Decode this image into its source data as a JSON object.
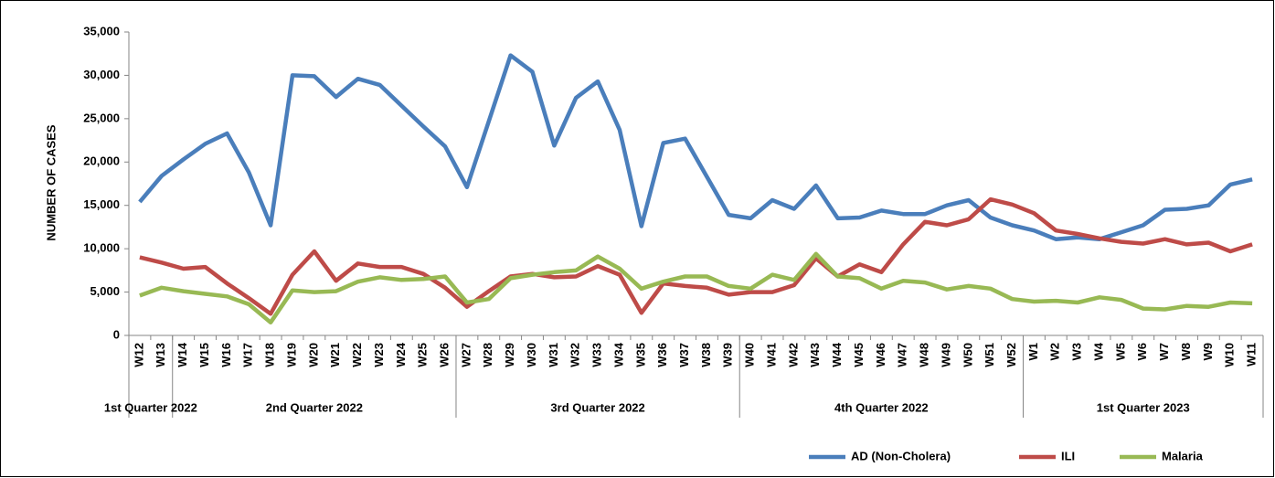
{
  "chart_data": {
    "type": "line",
    "y_label": "NUMBER OF CASES",
    "categories": [
      "W12",
      "W13",
      "W14",
      "W15",
      "W16",
      "W17",
      "W18",
      "W19",
      "W20",
      "W21",
      "W22",
      "W23",
      "W24",
      "W25",
      "W26",
      "W27",
      "W28",
      "W29",
      "W30",
      "W31",
      "W32",
      "W33",
      "W34",
      "W35",
      "W36",
      "W37",
      "W38",
      "W39",
      "W40",
      "W41",
      "W42",
      "W43",
      "W44",
      "W45",
      "W46",
      "W47",
      "W48",
      "W49",
      "W50",
      "W51",
      "W52",
      "W1",
      "W2",
      "W3",
      "W4",
      "W5",
      "W6",
      "W7",
      "W8",
      "W9",
      "W10",
      "W11"
    ],
    "groups": [
      {
        "label": "1st Quarter 2022",
        "count": 2
      },
      {
        "label": "2nd Quarter 2022",
        "count": 13
      },
      {
        "label": "3rd Quarter 2022",
        "count": 13
      },
      {
        "label": "4th Quarter 2022",
        "count": 13
      },
      {
        "label": "1st Quarter 2023",
        "count": 11
      }
    ],
    "series": [
      {
        "name": "AD (Non-Cholera)",
        "color": "#4a7ebb",
        "values": [
          15400,
          18400,
          20300,
          22100,
          23300,
          18800,
          12700,
          30000,
          29900,
          27500,
          29600,
          28900,
          26500,
          24100,
          21800,
          17100,
          24700,
          32300,
          30400,
          21900,
          27400,
          29300,
          23700,
          12600,
          22200,
          22700,
          18300,
          13900,
          13500,
          15600,
          14600,
          17300,
          13500,
          13600,
          14400,
          14000,
          14000,
          15000,
          15600,
          13600,
          12700,
          12100,
          11100,
          11300,
          11100,
          11900,
          12700,
          14500,
          14600,
          15000,
          17400,
          18000
        ]
      },
      {
        "name": "ILI",
        "color": "#be4b48",
        "values": [
          9000,
          8400,
          7700,
          7900,
          6000,
          4300,
          2500,
          7000,
          9700,
          6300,
          8300,
          7900,
          7900,
          7100,
          5500,
          3300,
          5100,
          6800,
          7100,
          6700,
          6800,
          8000,
          7000,
          2600,
          6000,
          5700,
          5500,
          4700,
          5000,
          5000,
          5800,
          8900,
          6800,
          8200,
          7300,
          10500,
          13100,
          12700,
          13400,
          15700,
          15100,
          14100,
          12100,
          11700,
          11200,
          10800,
          10600,
          11100,
          10500,
          10700,
          9700,
          10500
        ]
      },
      {
        "name": "Malaria",
        "color": "#98b954",
        "values": [
          4600,
          5500,
          5100,
          4800,
          4500,
          3600,
          1500,
          5200,
          5000,
          5100,
          6200,
          6700,
          6400,
          6500,
          6800,
          3800,
          4200,
          6600,
          7000,
          7300,
          7500,
          9100,
          7700,
          5400,
          6200,
          6800,
          6800,
          5700,
          5400,
          7000,
          6400,
          9400,
          6800,
          6600,
          5400,
          6300,
          6100,
          5300,
          5700,
          5400,
          4200,
          3900,
          4000,
          3800,
          4400,
          4100,
          3100,
          3000,
          3400,
          3300,
          3800,
          3700
        ]
      }
    ],
    "ylim": [
      0,
      35000
    ],
    "yticks": [
      0,
      {
        "value": 5000,
        "label": "5,000"
      },
      {
        "value": 10000,
        "label": "10,000"
      },
      {
        "value": 15000,
        "label": "15,000"
      },
      {
        "value": 20000,
        "label": "20,000"
      },
      {
        "value": 25000,
        "label": "25,000"
      },
      {
        "value": 30000,
        "label": "30,000"
      },
      {
        "value": 35000,
        "label": "35,000"
      }
    ],
    "legend": "bottom-right"
  }
}
